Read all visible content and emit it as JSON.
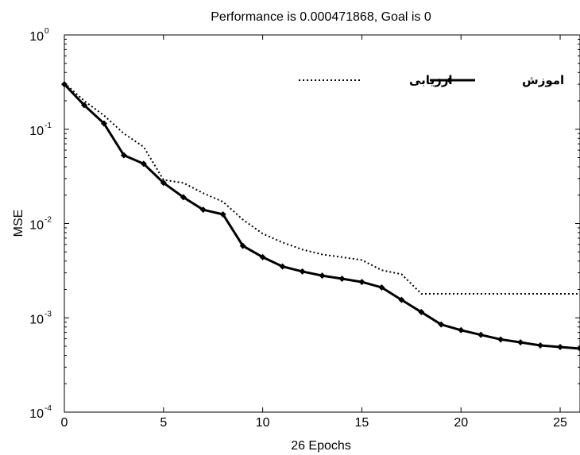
{
  "chart_data": {
    "type": "line",
    "title": "Performance is 0.000471868, Goal is 0",
    "xlabel": "26 Epochs",
    "ylabel": "MSE",
    "xlim": [
      0,
      26
    ],
    "ylim": [
      0.0001,
      1
    ],
    "yscale": "log",
    "x_ticks": [
      0,
      5,
      10,
      15,
      20,
      25
    ],
    "y_ticks": [
      {
        "value": 1,
        "base": "10",
        "exp": "0"
      },
      {
        "value": 0.1,
        "base": "10",
        "exp": "-1"
      },
      {
        "value": 0.01,
        "base": "10",
        "exp": "-2"
      },
      {
        "value": 0.001,
        "base": "10",
        "exp": "-3"
      },
      {
        "value": 0.0001,
        "base": "10",
        "exp": "-4"
      }
    ],
    "grid": false,
    "legend_position": "top-right",
    "series": [
      {
        "name": "اموزش",
        "style": "solid-marker",
        "color": "#000000",
        "x": [
          0,
          1,
          2,
          3,
          4,
          5,
          6,
          7,
          8,
          9,
          10,
          11,
          12,
          13,
          14,
          15,
          16,
          17,
          18,
          19,
          20,
          21,
          22,
          23,
          24,
          25,
          26
        ],
        "y": [
          0.3,
          0.18,
          0.115,
          0.053,
          0.043,
          0.027,
          0.019,
          0.014,
          0.0125,
          0.0058,
          0.0044,
          0.0035,
          0.0031,
          0.0028,
          0.0026,
          0.0024,
          0.0021,
          0.00155,
          0.00115,
          0.00085,
          0.00074,
          0.00066,
          0.00059,
          0.00055,
          0.00051,
          0.00049,
          0.000472
        ]
      },
      {
        "name": "ارزیابی",
        "style": "dotted",
        "color": "#000000",
        "x": [
          0,
          1,
          2,
          3,
          4,
          5,
          6,
          7,
          8,
          9,
          10,
          11,
          12,
          13,
          14,
          15,
          16,
          17,
          18,
          19,
          20,
          21,
          22,
          23,
          24,
          25,
          26
        ],
        "y": [
          0.31,
          0.2,
          0.14,
          0.09,
          0.065,
          0.029,
          0.027,
          0.021,
          0.017,
          0.011,
          0.0078,
          0.0063,
          0.0053,
          0.0047,
          0.0044,
          0.0041,
          0.0032,
          0.0029,
          0.0018,
          0.0018,
          0.0018,
          0.0018,
          0.0018,
          0.0018,
          0.0018,
          0.0018,
          0.0018
        ]
      }
    ]
  }
}
